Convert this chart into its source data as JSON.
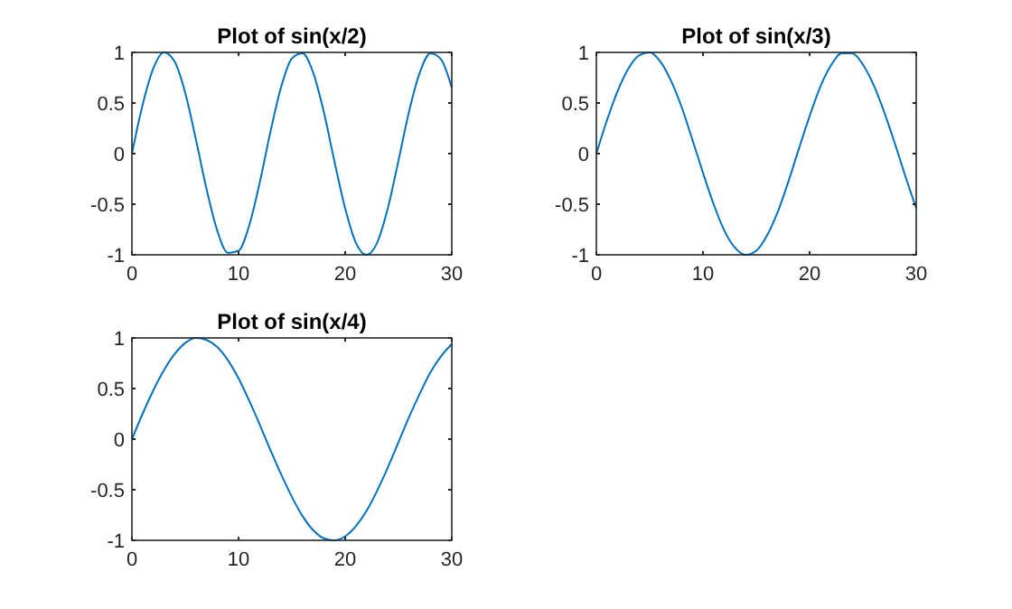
{
  "chart_data": [
    {
      "type": "line",
      "title": "Plot of sin(x/2)",
      "x": [
        0,
        1,
        2,
        3,
        4,
        5,
        6,
        7,
        8,
        9,
        10,
        11,
        12,
        13,
        14,
        15,
        16,
        17,
        18,
        19,
        20,
        21,
        22,
        23,
        24,
        25,
        26,
        27,
        28,
        29,
        30
      ],
      "series": [
        {
          "color": "#0072bd",
          "values": [
            0,
            0.48,
            0.84,
            1.0,
            0.91,
            0.6,
            0.14,
            -0.35,
            -0.76,
            -0.98,
            -0.96,
            -0.71,
            -0.28,
            0.22,
            0.66,
            0.94,
            0.99,
            0.8,
            0.41,
            -0.08,
            -0.54,
            -0.88,
            -1.0,
            -0.88,
            -0.54,
            -0.07,
            0.42,
            0.8,
            0.99,
            0.93,
            0.65
          ]
        }
      ],
      "xlim": [
        0,
        30
      ],
      "xticks": [
        0,
        10,
        20,
        30
      ],
      "ylim": [
        -1,
        1
      ],
      "yticks": [
        -1,
        -0.5,
        0,
        0.5,
        1
      ],
      "grid": false,
      "marker": "none",
      "line_style": "solid"
    },
    {
      "type": "line",
      "title": "Plot of sin(x/3)",
      "x": [
        0,
        1,
        2,
        3,
        4,
        5,
        6,
        7,
        8,
        9,
        10,
        11,
        12,
        13,
        14,
        15,
        16,
        17,
        18,
        19,
        20,
        21,
        22,
        23,
        24,
        25,
        26,
        27,
        28,
        29,
        30
      ],
      "series": [
        {
          "color": "#0072bd",
          "values": [
            0,
            0.33,
            0.62,
            0.84,
            0.97,
            1.0,
            0.91,
            0.72,
            0.46,
            0.14,
            -0.19,
            -0.5,
            -0.76,
            -0.93,
            -1.0,
            -0.96,
            -0.81,
            -0.58,
            -0.28,
            0.05,
            0.37,
            0.66,
            0.87,
            0.99,
            0.99,
            0.88,
            0.68,
            0.41,
            0.1,
            -0.23,
            -0.54
          ]
        }
      ],
      "xlim": [
        0,
        30
      ],
      "xticks": [
        0,
        10,
        20,
        30
      ],
      "ylim": [
        -1,
        1
      ],
      "yticks": [
        -1,
        -0.5,
        0,
        0.5,
        1
      ],
      "grid": false,
      "marker": "none",
      "line_style": "solid"
    },
    {
      "type": "line",
      "title": "Plot of sin(x/4)",
      "x": [
        0,
        1,
        2,
        3,
        4,
        5,
        6,
        7,
        8,
        9,
        10,
        11,
        12,
        13,
        14,
        15,
        16,
        17,
        18,
        19,
        20,
        21,
        22,
        23,
        24,
        25,
        26,
        27,
        28,
        29,
        30
      ],
      "series": [
        {
          "color": "#0072bd",
          "values": [
            0,
            0.25,
            0.48,
            0.68,
            0.84,
            0.95,
            1.0,
            0.98,
            0.91,
            0.78,
            0.6,
            0.38,
            0.14,
            -0.11,
            -0.35,
            -0.57,
            -0.76,
            -0.9,
            -0.98,
            -1.0,
            -0.96,
            -0.86,
            -0.71,
            -0.51,
            -0.28,
            -0.03,
            0.22,
            0.45,
            0.66,
            0.82,
            0.94
          ]
        }
      ],
      "xlim": [
        0,
        30
      ],
      "xticks": [
        0,
        10,
        20,
        30
      ],
      "ylim": [
        -1,
        1
      ],
      "yticks": [
        -1,
        -0.5,
        0,
        0.5,
        1
      ],
      "grid": false,
      "marker": "none",
      "line_style": "solid"
    }
  ]
}
